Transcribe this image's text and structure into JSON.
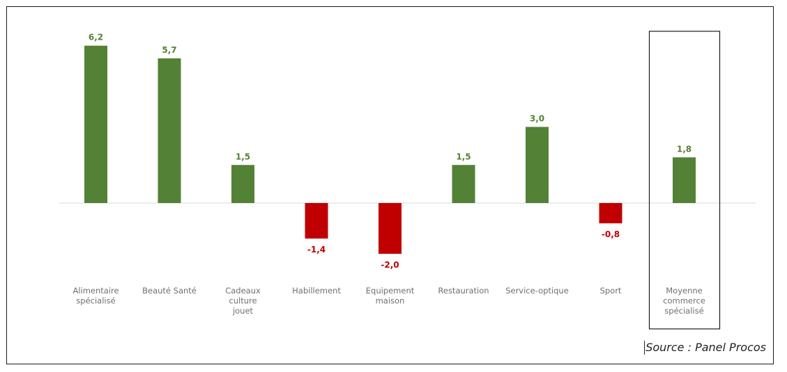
{
  "chart_data": {
    "type": "bar",
    "categories": [
      [
        "Alimentaire",
        "spécialisé"
      ],
      [
        "Beauté Santé"
      ],
      [
        "Cadeaux",
        "culture",
        "jouet"
      ],
      [
        "Habillement"
      ],
      [
        "Equipement",
        "maison"
      ],
      [
        "Restauration"
      ],
      [
        "Service-optique"
      ],
      [
        "Sport"
      ],
      [
        "Moyenne",
        "commerce",
        "spécialisé"
      ]
    ],
    "values": [
      6.2,
      5.7,
      1.5,
      -1.4,
      -2.0,
      1.5,
      3.0,
      -0.8,
      1.8
    ],
    "value_labels": [
      "6,2",
      "5,7",
      "1,5",
      "-1,4",
      "-2,0",
      "1,5",
      "3,0",
      "-0,8",
      "1,8"
    ],
    "highlighted_category_index": 8,
    "colors": {
      "positive": "#538135",
      "negative": "#c00000",
      "category_text": "#6f6f6f",
      "baseline": "#d9d9d9"
    },
    "ylim": [
      -2.0,
      6.2
    ],
    "grid": false,
    "legend": "none"
  },
  "source_text": "Source : Panel Procos"
}
